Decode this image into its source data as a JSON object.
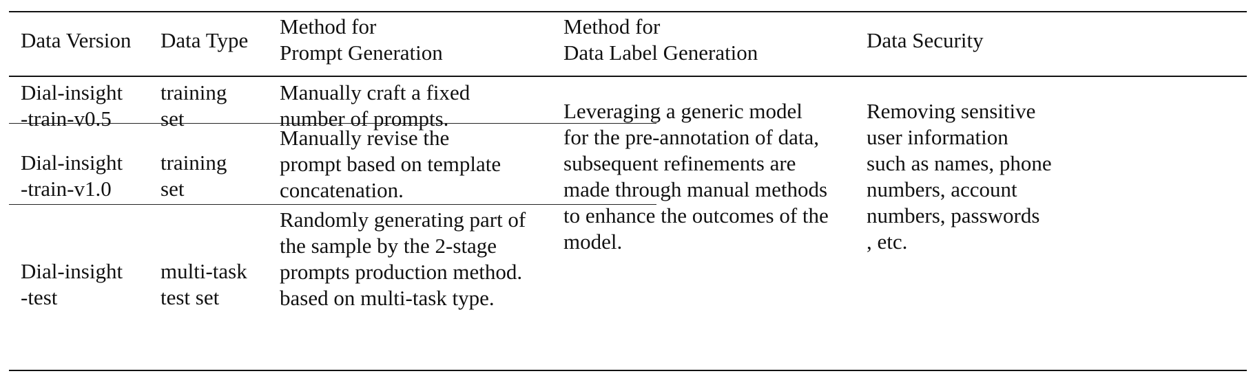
{
  "table": {
    "headers": {
      "data_version": "Data Version",
      "data_type": "Data Type",
      "prompt_method": "Method for\nPrompt Generation",
      "label_method": "Method for\nData Label Generation",
      "data_security": "Data Security"
    },
    "rows": [
      {
        "version": "Dial-insight\n-train-v0.5",
        "type": "training\nset",
        "prompt_method": "Manually craft a fixed\nnumber of prompts."
      },
      {
        "version": "Dial-insight\n-train-v1.0",
        "type": "training\nset",
        "prompt_method": "Manually revise the\nprompt based on template\nconcatenation."
      },
      {
        "version": "Dial-insight\n-test",
        "type": "multi-task\ntest set",
        "prompt_method": "Randomly generating part of\nthe sample by the 2-stage\nprompts production method.\nbased on multi-task type."
      }
    ],
    "shared": {
      "label_method": "Leveraging a generic model\nfor the pre-annotation of data,\nsubsequent refinements are\nmade through manual methods\nto enhance the outcomes of the\nmodel.",
      "data_security": "Removing sensitive\nuser information\nsuch as names, phone\nnumbers, account\nnumbers, passwords\n, etc."
    }
  }
}
